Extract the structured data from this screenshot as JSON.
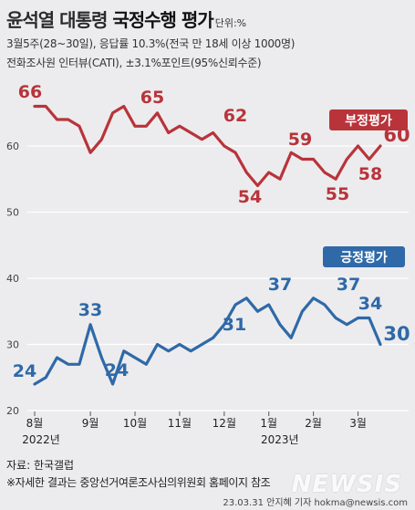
{
  "header": {
    "title_part1": "윤석열 대통령 ",
    "title_part2": "국정수행 평가",
    "unit": "단위:%",
    "info_line1": "3월5주(28~30일), 응답률 10.3%(전국 만 18세 이상 1000명)",
    "info_line2": "전화조사원 인터뷰(CATI), ±3.1%포인트(95%신뢰수준)"
  },
  "footer": {
    "source": "자료: 한국갤럽",
    "note": "※자세한 결과는 중앙선거여론조사심의위원회 홈페이지 참조",
    "credit": "23.03.31 안지혜 기자 hokma@newsis.com",
    "logo": "NEWSIS"
  },
  "colors": {
    "background": "#ececee",
    "negative": "#b8343a",
    "positive": "#2f69a8",
    "grid": "#ffffff"
  },
  "chart_data": {
    "type": "line",
    "ylim": [
      20,
      67
    ],
    "yticks": [
      "20",
      "30",
      "40",
      "50",
      "60"
    ],
    "month_labels": [
      "8월",
      "9월",
      "10월",
      "11월",
      "12월",
      "1월",
      "2월",
      "3월"
    ],
    "year_labels": [
      "2022년",
      "2023년"
    ],
    "series": [
      {
        "name": "부정평가",
        "values": [
          66,
          66,
          64,
          64,
          63,
          59,
          61,
          65,
          66,
          63,
          63,
          65,
          62,
          63,
          62,
          61,
          62,
          60,
          59,
          56,
          54,
          56,
          55,
          59,
          58,
          58,
          56,
          55,
          58,
          60,
          58,
          60
        ],
        "labels": [
          "66",
          "65",
          "62",
          "54",
          "59",
          "55",
          "58",
          "60"
        ]
      },
      {
        "name": "긍정평가",
        "values": [
          24,
          25,
          28,
          27,
          27,
          33,
          28,
          24,
          29,
          28,
          27,
          30,
          29,
          30,
          29,
          30,
          31,
          33,
          36,
          37,
          35,
          36,
          33,
          31,
          35,
          37,
          36,
          34,
          33,
          34,
          34,
          30
        ],
        "labels": [
          "24",
          "33",
          "24",
          "31",
          "37",
          "37",
          "34",
          "30"
        ]
      }
    ]
  }
}
